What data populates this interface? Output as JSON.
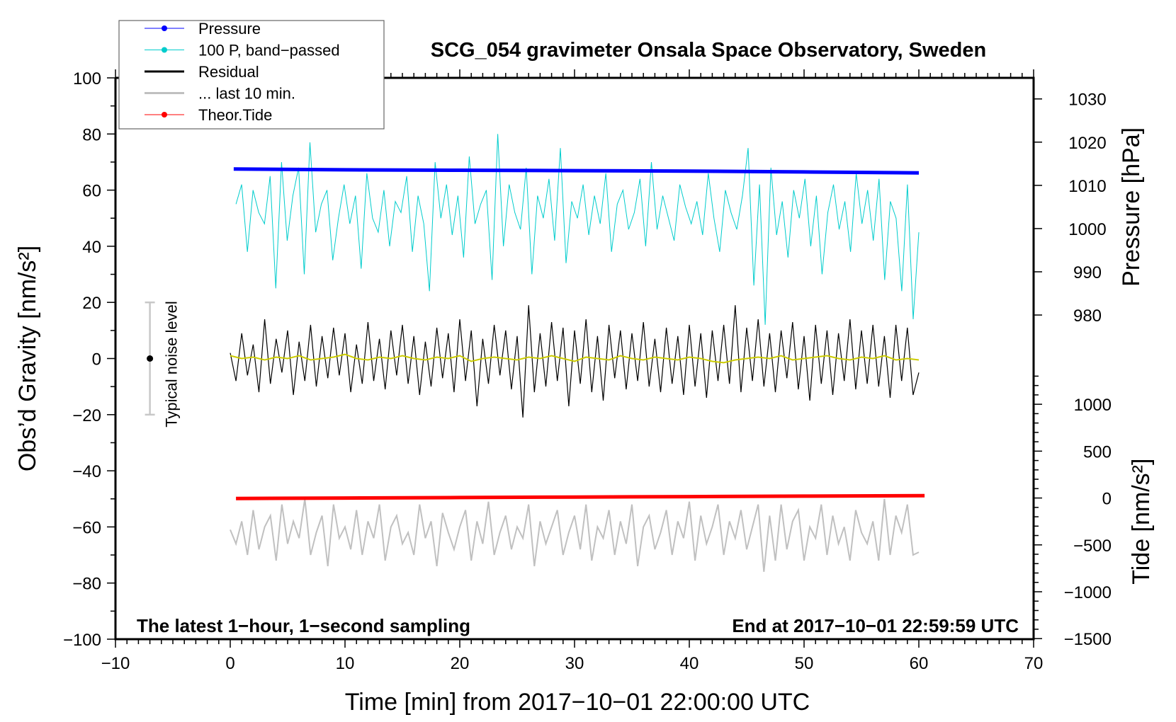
{
  "chart_data": {
    "type": "line",
    "title": "SCG_054 gravimeter Onsala Space Observatory, Sweden",
    "xlabel": "Time [min] from 2017−10−01 22:00:00 UTC",
    "ylabel_left": "Obs’d Gravity [nm/s²]",
    "ylabel_right_pressure": "Pressure [hPa]",
    "ylabel_right_tide": "Tide [nm/s²]",
    "xlim": [
      -10,
      70
    ],
    "ylim": [
      -100,
      100
    ],
    "xticks": [
      -10,
      0,
      10,
      20,
      30,
      40,
      50,
      60,
      70
    ],
    "xtick_labels": [
      "−10",
      "0",
      "10",
      "20",
      "30",
      "40",
      "50",
      "60",
      "70"
    ],
    "yticks": [
      100,
      80,
      60,
      40,
      20,
      0,
      -20,
      -40,
      -60,
      -80,
      -100
    ],
    "ytick_labels": [
      "100",
      "80",
      "60",
      "40",
      "20",
      "0",
      "−20",
      "−40",
      "−60",
      "−80",
      "−100"
    ],
    "pressure_ticks": [
      1030,
      1020,
      1010,
      1000,
      990,
      980
    ],
    "pressure_tick_labels": [
      "1030",
      "1020",
      "1010",
      "1000",
      "990",
      "980"
    ],
    "tide_ticks": [
      1000,
      500,
      0,
      -500,
      -1000,
      -1500
    ],
    "tide_tick_labels": [
      "1000",
      "500",
      "0",
      "−500",
      "−1000",
      "−1500"
    ],
    "annotation_left": "The latest 1−hour, 1−second sampling",
    "annotation_right": "End at 2017−10−01 22:59:59 UTC",
    "noise_bar": {
      "label": "Typical noise level",
      "x": -7,
      "center": 0,
      "low": -20,
      "high": 20
    },
    "legend_placement": "top-left",
    "legend": [
      {
        "label": "Pressure",
        "color": "#0000ff",
        "marker": true
      },
      {
        "label": "100 P, band−passed",
        "color": "#00cccc",
        "marker": true
      },
      {
        "label": "Residual",
        "color": "#000000",
        "marker": false
      },
      {
        "label": "... last 10 min.",
        "color": "#c0c0c0",
        "marker": false
      },
      {
        "label": "Theor.Tide",
        "color": "#ff0000",
        "marker": true
      }
    ],
    "series": [
      {
        "name": "Pressure",
        "axis": "pressure_hPa",
        "color": "#0000ff",
        "x": [
          0.3,
          10,
          20,
          30,
          40,
          50,
          60
        ],
        "values": [
          1013.8,
          1013.6,
          1013.5,
          1013.4,
          1013.3,
          1013.1,
          1012.9
        ]
      },
      {
        "name": "100 P, band-passed",
        "axis": "gravity",
        "color": "#00cccc",
        "x_range": [
          0.5,
          60
        ],
        "values": [
          55,
          62,
          38,
          60,
          52,
          48,
          65,
          25,
          70,
          42,
          58,
          68,
          30,
          77,
          45,
          55,
          60,
          35,
          50,
          62,
          48,
          58,
          32,
          66,
          50,
          45,
          60,
          40,
          56,
          52,
          65,
          38,
          58,
          48,
          24,
          70,
          50,
          62,
          44,
          58,
          36,
          72,
          48,
          55,
          60,
          28,
          80,
          40,
          62,
          52,
          46,
          68,
          30,
          58,
          50,
          64,
          42,
          75,
          34,
          56,
          50,
          62,
          44,
          58,
          48,
          66,
          38,
          55,
          60,
          46,
          52,
          64,
          40,
          70,
          46,
          58,
          50,
          42,
          62,
          54,
          48,
          56,
          44,
          66,
          50,
          38,
          60,
          52,
          46,
          58,
          75,
          26,
          62,
          12,
          68,
          44,
          56,
          36,
          60,
          50,
          64,
          40,
          58,
          30,
          52,
          62,
          46,
          56,
          38,
          66,
          48,
          60,
          42,
          64,
          28,
          56,
          50,
          24,
          62,
          14,
          45
        ]
      },
      {
        "name": "Residual",
        "axis": "gravity",
        "color": "#000000",
        "x_range": [
          0,
          60
        ],
        "values": [
          2,
          -8,
          9,
          -6,
          5,
          -12,
          14,
          -9,
          7,
          -5,
          10,
          -13,
          6,
          -8,
          12,
          -10,
          8,
          -7,
          11,
          -6,
          9,
          -12,
          5,
          -9,
          13,
          -8,
          7,
          -11,
          10,
          -6,
          12,
          -9,
          8,
          -13,
          6,
          -10,
          11,
          -7,
          9,
          -12,
          14,
          -8,
          10,
          -17,
          7,
          -9,
          12,
          -6,
          10,
          -11,
          8,
          -21,
          19,
          -12,
          9,
          -10,
          13,
          -8,
          11,
          -17,
          10,
          -9,
          14,
          -12,
          8,
          -15,
          12,
          -7,
          10,
          -11,
          9,
          -8,
          13,
          -10,
          7,
          -12,
          11,
          -9,
          8,
          -13,
          12,
          -10,
          9,
          -14,
          10,
          -8,
          12,
          -9,
          19,
          -12,
          11,
          -8,
          14,
          -10,
          9,
          -12,
          10,
          -7,
          13,
          -11,
          8,
          -15,
          12,
          -9,
          10,
          -13,
          9,
          -8,
          14,
          -11,
          10,
          -9,
          12,
          -10,
          8,
          -14,
          12,
          -8,
          11,
          -13,
          -5
        ]
      },
      {
        "name": "Residual smoothed",
        "axis": "gravity",
        "color": "#cccc00",
        "x_range": [
          0,
          60
        ],
        "values": [
          1,
          0,
          0.5,
          -0.5,
          0.5,
          0,
          1,
          -0.5,
          0,
          0.5,
          1.5,
          0,
          -0.5,
          0.5,
          0,
          1,
          0,
          -0.5,
          0.5,
          0,
          1,
          -1,
          0,
          0.5,
          0,
          -0.5,
          0.5,
          0,
          1,
          0,
          -1,
          0.5,
          0,
          -0.5,
          1,
          0,
          -0.5,
          0.5,
          0,
          -0.5,
          0.5,
          0,
          -1,
          -1.5,
          -0.5,
          0,
          0.5,
          0,
          1,
          -0.5,
          0,
          0.5,
          1,
          0,
          -0.5,
          0.5,
          0,
          1,
          -0.5,
          0,
          -0.5
        ]
      },
      {
        "name": "... last 10 min.",
        "axis": "gravity",
        "color": "#c0c0c0",
        "x_range": [
          0,
          60
        ],
        "values": [
          -61,
          -66,
          -58,
          -70,
          -54,
          -68,
          -60,
          -56,
          -72,
          -52,
          -66,
          -58,
          -64,
          -50,
          -70,
          -62,
          -56,
          -74,
          -52,
          -64,
          -60,
          -68,
          -54,
          -70,
          -58,
          -64,
          -52,
          -72,
          -60,
          -56,
          -66,
          -62,
          -70,
          -52,
          -64,
          -58,
          -74,
          -55,
          -62,
          -68,
          -60,
          -54,
          -72,
          -58,
          -66,
          -51,
          -70,
          -62,
          -56,
          -68,
          -60,
          -64,
          -52,
          -74,
          -58,
          -66,
          -60,
          -54,
          -70,
          -62,
          -56,
          -68,
          -52,
          -72,
          -60,
          -64,
          -54,
          -70,
          -58,
          -66,
          -52,
          -74,
          -60,
          -56,
          -68,
          -62,
          -54,
          -70,
          -58,
          -64,
          -51,
          -72,
          -56,
          -66,
          -60,
          -52,
          -70,
          -58,
          -64,
          -54,
          -68,
          -60,
          -52,
          -76,
          -56,
          -72,
          -52,
          -68,
          -58,
          -54,
          -72,
          -60,
          -64,
          -52,
          -70,
          -56,
          -66,
          -60,
          -72,
          -54,
          -62,
          -66,
          -58,
          -72,
          -50,
          -70,
          -56,
          -62,
          -52,
          -70,
          -69
        ]
      },
      {
        "name": "Theor.Tide",
        "axis": "tide_nm_s2",
        "color": "#ff0000",
        "x": [
          0.5,
          10,
          20,
          30,
          40,
          50,
          60.5
        ],
        "values": [
          -5,
          0,
          5,
          10,
          15,
          20,
          25
        ]
      }
    ]
  }
}
